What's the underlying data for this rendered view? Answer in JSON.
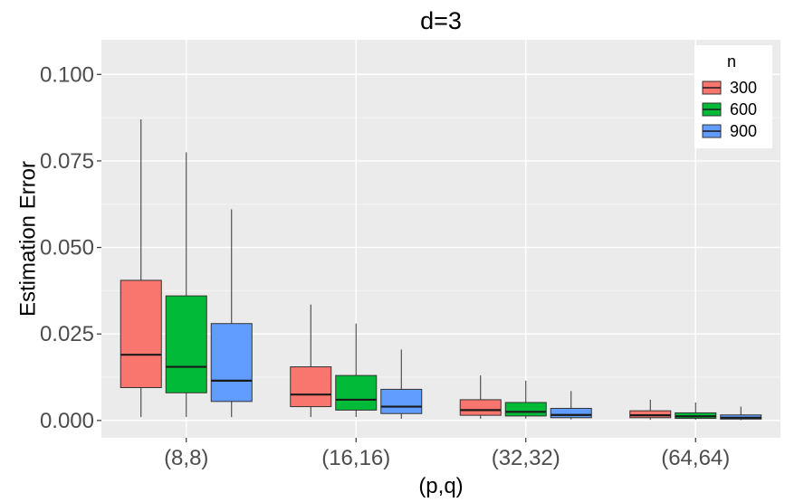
{
  "chart_data": {
    "type": "boxplot",
    "title": "d=3",
    "xlabel": "(p,q)",
    "ylabel": "Estimation Error",
    "ylim": [
      -0.005,
      0.11
    ],
    "yticks": [
      "0.000",
      "0.025",
      "0.050",
      "0.075",
      "0.100"
    ],
    "categories": [
      "(8,8)",
      "(16,16)",
      "(32,32)",
      "(64,64)"
    ],
    "legend": {
      "title": "n",
      "position": "top-right"
    },
    "grid": true,
    "series": [
      {
        "name": "300",
        "color": "#F8766D",
        "boxes": [
          {
            "min": 0.001,
            "q1": 0.0095,
            "median": 0.019,
            "q3": 0.0405,
            "max": 0.087
          },
          {
            "min": 0.001,
            "q1": 0.004,
            "median": 0.0075,
            "q3": 0.0155,
            "max": 0.0335
          },
          {
            "min": 0.0005,
            "q1": 0.0015,
            "median": 0.003,
            "q3": 0.006,
            "max": 0.013
          },
          {
            "min": 0.0002,
            "q1": 0.0008,
            "median": 0.0015,
            "q3": 0.0028,
            "max": 0.006
          }
        ]
      },
      {
        "name": "600",
        "color": "#00BA38",
        "boxes": [
          {
            "min": 0.001,
            "q1": 0.008,
            "median": 0.0155,
            "q3": 0.036,
            "max": 0.0775
          },
          {
            "min": 0.001,
            "q1": 0.003,
            "median": 0.006,
            "q3": 0.013,
            "max": 0.028
          },
          {
            "min": 0.0005,
            "q1": 0.0013,
            "median": 0.0025,
            "q3": 0.0052,
            "max": 0.0115
          },
          {
            "min": 0.0002,
            "q1": 0.0006,
            "median": 0.0012,
            "q3": 0.0022,
            "max": 0.0052
          }
        ]
      },
      {
        "name": "900",
        "color": "#619CFF",
        "boxes": [
          {
            "min": 0.001,
            "q1": 0.0055,
            "median": 0.0115,
            "q3": 0.028,
            "max": 0.061
          },
          {
            "min": 0.0005,
            "q1": 0.002,
            "median": 0.004,
            "q3": 0.009,
            "max": 0.0205
          },
          {
            "min": 0.0003,
            "q1": 0.0008,
            "median": 0.0016,
            "q3": 0.0035,
            "max": 0.0085
          },
          {
            "min": 0.0001,
            "q1": 0.0004,
            "median": 0.0008,
            "q3": 0.0016,
            "max": 0.004
          }
        ]
      }
    ]
  }
}
